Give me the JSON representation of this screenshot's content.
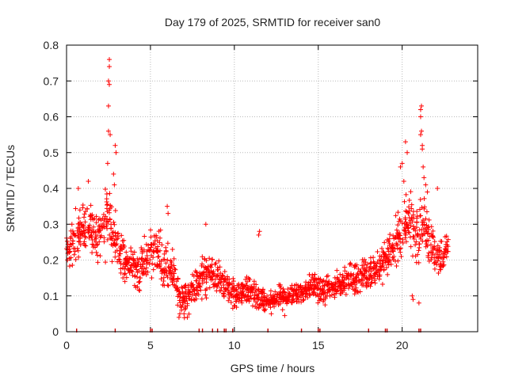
{
  "chart_data": {
    "type": "scatter",
    "title": "Day 179 of 2025, SRMTID for receiver san0",
    "xlabel": "GPS time / hours",
    "ylabel": "SRMTID / TECUs",
    "xlim": [
      0,
      24.5
    ],
    "ylim": [
      0,
      0.8
    ],
    "xticks": [
      0,
      5,
      10,
      15,
      20
    ],
    "yticks": [
      0,
      0.1,
      0.2,
      0.3,
      0.4,
      0.5,
      0.6,
      0.7,
      0.8
    ],
    "grid": true,
    "legend": "none",
    "marker": "+",
    "color": "#ff0000",
    "series": [
      {
        "name": "SRMTID",
        "x": [
          0.0,
          0.25,
          0.5,
          0.75,
          1.0,
          1.25,
          1.5,
          1.75,
          2.0,
          2.25,
          2.5,
          2.75,
          3.0,
          3.25,
          3.5,
          3.75,
          4.0,
          4.25,
          4.5,
          4.75,
          5.0,
          5.25,
          5.5,
          5.75,
          6.0,
          6.25,
          6.5,
          6.75,
          7.0,
          7.25,
          7.5,
          7.75,
          8.0,
          8.25,
          8.5,
          8.75,
          9.0,
          9.25,
          9.5,
          9.75,
          10.0,
          10.25,
          10.5,
          10.75,
          11.0,
          11.25,
          11.5,
          11.75,
          12.0,
          12.25,
          12.5,
          12.75,
          13.0,
          13.25,
          13.5,
          13.75,
          14.0,
          14.25,
          14.5,
          14.75,
          15.0,
          15.25,
          15.5,
          15.75,
          16.0,
          16.25,
          16.5,
          16.75,
          17.0,
          17.25,
          17.5,
          17.75,
          18.0,
          18.25,
          18.5,
          18.75,
          19.0,
          19.25,
          19.5,
          19.75,
          20.0,
          20.25,
          20.5,
          20.75,
          21.0,
          21.25,
          21.5,
          21.75,
          22.0,
          22.25,
          22.5,
          22.75
        ],
        "center": [
          0.22,
          0.24,
          0.26,
          0.28,
          0.29,
          0.3,
          0.28,
          0.25,
          0.27,
          0.3,
          0.33,
          0.27,
          0.24,
          0.21,
          0.2,
          0.19,
          0.18,
          0.17,
          0.18,
          0.2,
          0.21,
          0.22,
          0.21,
          0.2,
          0.19,
          0.17,
          0.13,
          0.1,
          0.09,
          0.1,
          0.12,
          0.13,
          0.14,
          0.16,
          0.17,
          0.16,
          0.15,
          0.14,
          0.13,
          0.12,
          0.11,
          0.1,
          0.11,
          0.12,
          0.11,
          0.1,
          0.09,
          0.085,
          0.08,
          0.085,
          0.09,
          0.1,
          0.095,
          0.1,
          0.105,
          0.11,
          0.115,
          0.12,
          0.125,
          0.13,
          0.12,
          0.11,
          0.115,
          0.12,
          0.13,
          0.135,
          0.14,
          0.145,
          0.15,
          0.15,
          0.155,
          0.16,
          0.165,
          0.17,
          0.18,
          0.19,
          0.2,
          0.22,
          0.24,
          0.26,
          0.28,
          0.3,
          0.32,
          0.28,
          0.27,
          0.3,
          0.27,
          0.24,
          0.22,
          0.21,
          0.22,
          0.24
        ],
        "spread": [
          0.07,
          0.07,
          0.08,
          0.09,
          0.08,
          0.07,
          0.08,
          0.09,
          0.09,
          0.1,
          0.12,
          0.1,
          0.09,
          0.08,
          0.07,
          0.06,
          0.06,
          0.06,
          0.07,
          0.07,
          0.08,
          0.08,
          0.09,
          0.08,
          0.07,
          0.07,
          0.07,
          0.05,
          0.05,
          0.05,
          0.05,
          0.06,
          0.06,
          0.07,
          0.06,
          0.06,
          0.05,
          0.05,
          0.05,
          0.05,
          0.05,
          0.04,
          0.04,
          0.05,
          0.05,
          0.05,
          0.04,
          0.04,
          0.03,
          0.03,
          0.03,
          0.04,
          0.04,
          0.04,
          0.04,
          0.04,
          0.04,
          0.04,
          0.05,
          0.04,
          0.04,
          0.04,
          0.04,
          0.04,
          0.04,
          0.04,
          0.05,
          0.04,
          0.05,
          0.05,
          0.05,
          0.05,
          0.05,
          0.05,
          0.06,
          0.06,
          0.06,
          0.06,
          0.07,
          0.08,
          0.09,
          0.1,
          0.1,
          0.09,
          0.09,
          0.1,
          0.08,
          0.07,
          0.06,
          0.06,
          0.06,
          0.06
        ],
        "peaks": [
          {
            "x": 2.55,
            "y": 0.76
          },
          {
            "x": 2.55,
            "y": 0.74
          },
          {
            "x": 2.5,
            "y": 0.7
          },
          {
            "x": 2.55,
            "y": 0.69
          },
          {
            "x": 2.5,
            "y": 0.63
          },
          {
            "x": 2.5,
            "y": 0.56
          },
          {
            "x": 2.6,
            "y": 0.55
          },
          {
            "x": 2.45,
            "y": 0.47
          },
          {
            "x": 2.8,
            "y": 0.44
          },
          {
            "x": 2.9,
            "y": 0.52
          },
          {
            "x": 2.95,
            "y": 0.5
          },
          {
            "x": 2.85,
            "y": 0.41
          },
          {
            "x": 21.1,
            "y": 0.62
          },
          {
            "x": 21.15,
            "y": 0.63
          },
          {
            "x": 21.1,
            "y": 0.6
          },
          {
            "x": 21.15,
            "y": 0.56
          },
          {
            "x": 21.1,
            "y": 0.55
          },
          {
            "x": 21.2,
            "y": 0.51
          },
          {
            "x": 21.2,
            "y": 0.52
          },
          {
            "x": 20.2,
            "y": 0.53
          },
          {
            "x": 20.3,
            "y": 0.5
          },
          {
            "x": 19.9,
            "y": 0.46
          },
          {
            "x": 20.0,
            "y": 0.47
          },
          {
            "x": 21.25,
            "y": 0.46
          },
          {
            "x": 21.3,
            "y": 0.43
          },
          {
            "x": 20.1,
            "y": 0.42
          },
          {
            "x": 21.4,
            "y": 0.41
          },
          {
            "x": 22.1,
            "y": 0.4
          },
          {
            "x": 21.5,
            "y": 0.39
          },
          {
            "x": 0.7,
            "y": 0.4
          },
          {
            "x": 1.3,
            "y": 0.42
          },
          {
            "x": 6.0,
            "y": 0.35
          },
          {
            "x": 6.05,
            "y": 0.33
          },
          {
            "x": 8.3,
            "y": 0.3
          },
          {
            "x": 11.45,
            "y": 0.27
          },
          {
            "x": 11.5,
            "y": 0.28
          }
        ],
        "dips": [
          {
            "x": 6.7,
            "y": 0.04
          },
          {
            "x": 6.75,
            "y": 0.05
          },
          {
            "x": 7.0,
            "y": 0.05
          },
          {
            "x": 7.2,
            "y": 0.04
          },
          {
            "x": 13.0,
            "y": 0.045
          },
          {
            "x": 12.2,
            "y": 0.05
          },
          {
            "x": 21.0,
            "y": 0.08
          },
          {
            "x": 20.6,
            "y": 0.1
          },
          {
            "x": 20.65,
            "y": 0.09
          }
        ]
      }
    ],
    "baseline_flags_x": [
      0.6,
      2.9,
      5.0,
      5.1,
      7.9,
      8.1,
      8.7,
      9.0,
      9.4,
      9.5,
      9.9,
      12.0,
      14.0,
      15.0,
      15.1,
      18.0,
      19.0,
      19.1,
      21.0,
      21.1
    ]
  }
}
